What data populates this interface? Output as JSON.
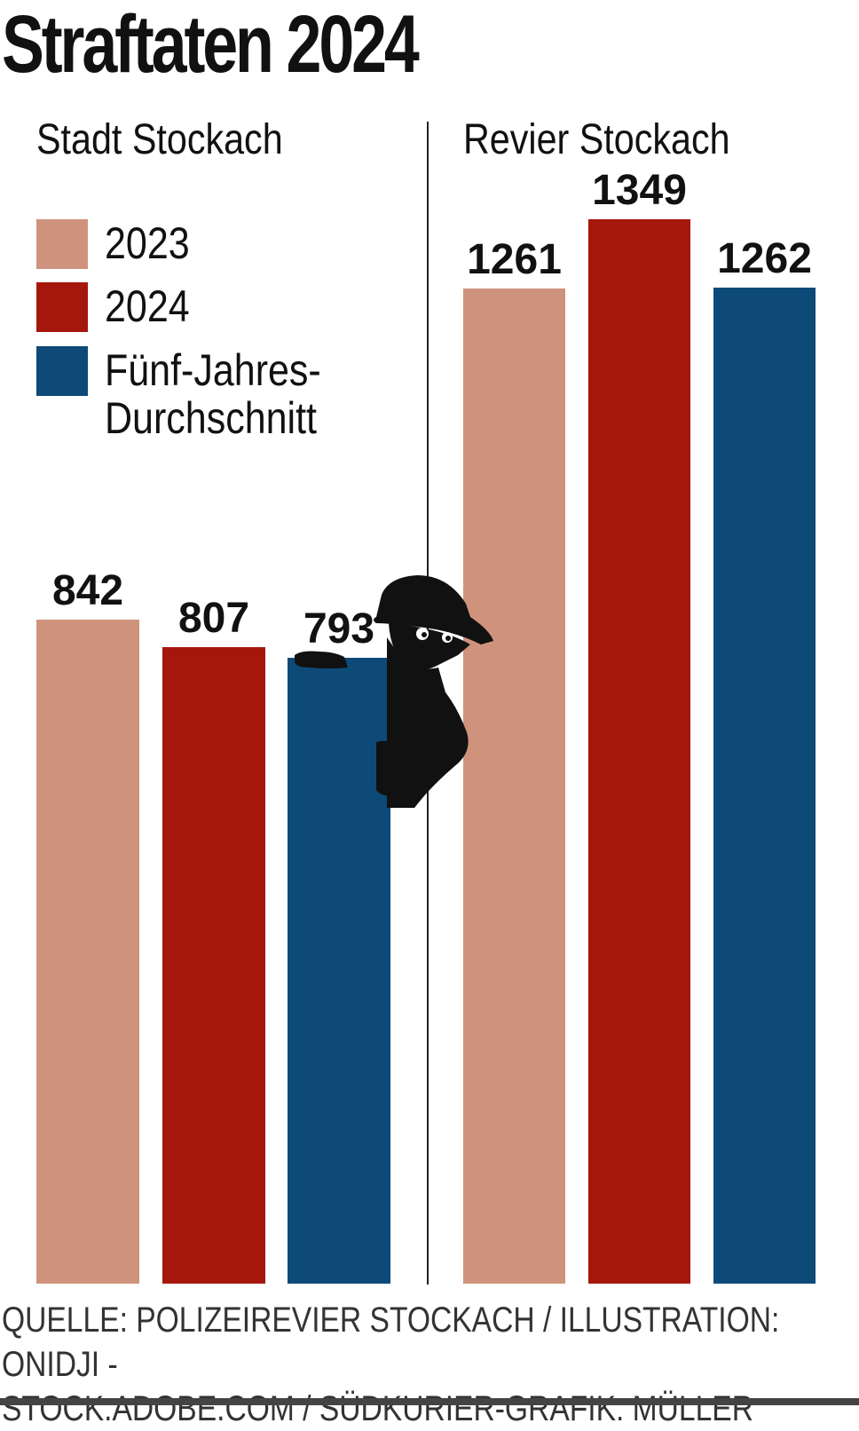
{
  "title": "Straftaten 2024",
  "legend": [
    {
      "label": "2023",
      "color": "#cf937d"
    },
    {
      "label": "2024",
      "color": "#a5170d"
    },
    {
      "label": "Fünf-Jahres-\nDurchschnitt",
      "color": "#0e4a78"
    }
  ],
  "source": "QUELLE: POLIZEIREVIER STOCKACH / ILLUSTRATION: ONIDJI -\nSTOCK.ADOBE.COM / SÜDKURIER-GRAFIK: MÜLLER",
  "illustration_icon": "burglar-silhouette-icon",
  "chart_data": [
    {
      "type": "bar",
      "title": "Stadt Stockach",
      "categories": [
        "2023",
        "2024",
        "Fünf-Jahres-Durchschnitt"
      ],
      "values": [
        842,
        807,
        793
      ],
      "labels": [
        "842",
        "807",
        "793"
      ],
      "colors": [
        "#cf937d",
        "#a5170d",
        "#0e4a78"
      ],
      "ylim": [
        0,
        1349
      ]
    },
    {
      "type": "bar",
      "title": "Revier Stockach",
      "categories": [
        "2023",
        "2024",
        "Fünf-Jahres-Durchschnitt"
      ],
      "values": [
        1261,
        1349,
        1262
      ],
      "labels": [
        "1261",
        "1349",
        "1262"
      ],
      "colors": [
        "#cf937d",
        "#a5170d",
        "#0e4a78"
      ],
      "ylim": [
        0,
        1349
      ]
    }
  ]
}
